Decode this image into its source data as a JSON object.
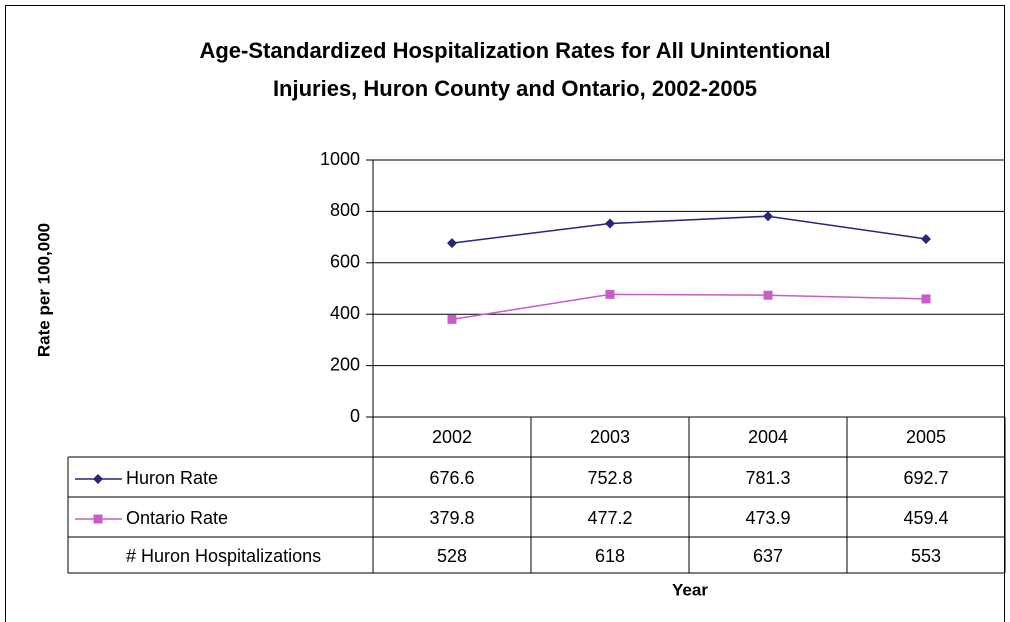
{
  "chart_data": {
    "type": "line",
    "title": [
      "Age-Standardized Hospitalization Rates for All Unintentional",
      "Injuries, Huron County and Ontario, 2002-2005"
    ],
    "y_label": "Rate per 100,000",
    "x_label": "Year",
    "categories": [
      "2002",
      "2003",
      "2004",
      "2005"
    ],
    "series": [
      {
        "name": "Huron Rate",
        "color": "#26267a",
        "marker": "diamond",
        "values": [
          676.6,
          752.8,
          781.3,
          692.7
        ]
      },
      {
        "name": "Ontario Rate",
        "color": "#c85cc8",
        "marker": "square",
        "values": [
          379.8,
          477.2,
          473.9,
          459.4
        ]
      }
    ],
    "table_row": {
      "name": "# Huron Hospitalizations",
      "values": [
        528,
        618,
        637,
        553
      ]
    },
    "ylim": [
      0,
      1000
    ],
    "yticks": [
      0,
      200,
      400,
      600,
      800,
      1000
    ],
    "grid": true
  }
}
